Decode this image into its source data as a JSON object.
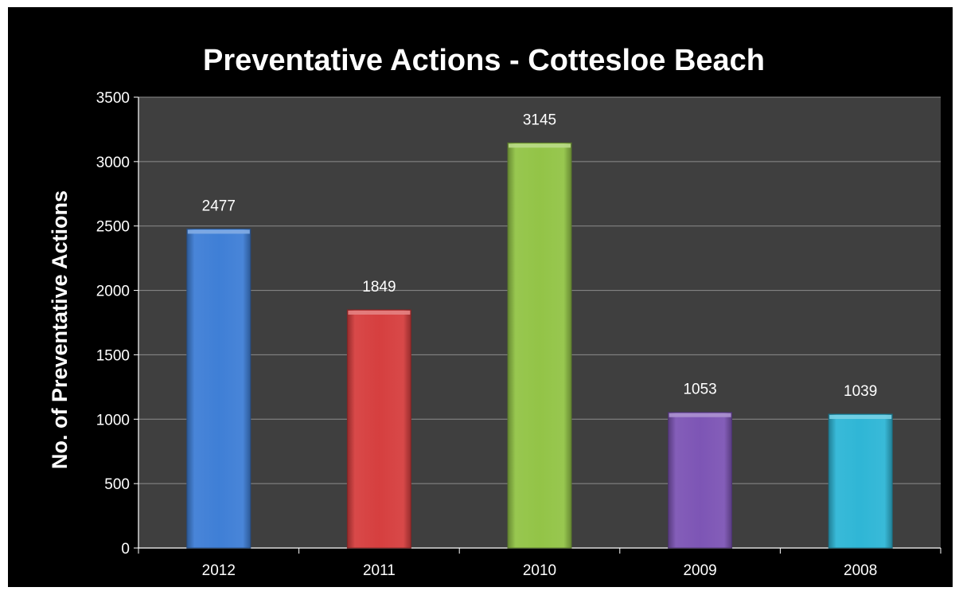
{
  "chart_data": {
    "type": "bar",
    "title": "Preventative Actions - Cottesloe Beach",
    "xlabel": "",
    "ylabel": "No. of Preventative Actions",
    "categories": [
      "2012",
      "2011",
      "2010",
      "2009",
      "2008"
    ],
    "values": [
      2477,
      1849,
      3145,
      1053,
      1039
    ],
    "data_labels": [
      "2477",
      "1849",
      "3145",
      "1053",
      "1039"
    ],
    "ylim": [
      0,
      3500
    ],
    "yticks": [
      0,
      500,
      1000,
      1500,
      2000,
      2500,
      3000,
      3500
    ],
    "ytick_labels": [
      "0",
      "500",
      "1000",
      "1500",
      "2000",
      "2500",
      "3000",
      "3500"
    ],
    "grid": true,
    "legend": "none",
    "colors": {
      "background": "#000000",
      "plot_area": "#3f3f3f",
      "gridline": "#8c8c8c",
      "bars": [
        "#3f7fd6",
        "#d63f3f",
        "#93c447",
        "#7d55b5",
        "#2fb6d6"
      ]
    }
  }
}
